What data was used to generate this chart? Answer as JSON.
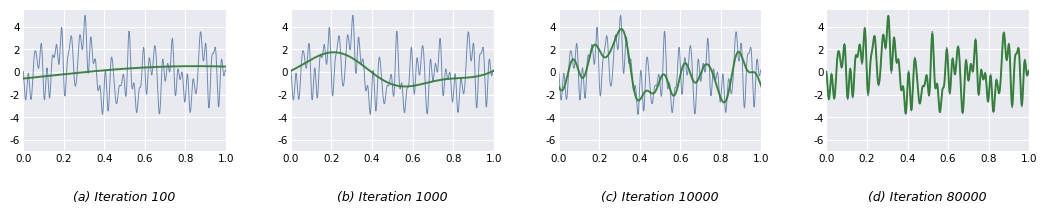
{
  "titles": [
    "(a) Iteration 100",
    "(b) Iteration 1000",
    "(c) Iteration 10000",
    "(d) Iteration 80000"
  ],
  "ylim": [
    -7,
    5.5
  ],
  "xlim": [
    0.0,
    1.0
  ],
  "yticks": [
    -6,
    -4,
    -2,
    0,
    2,
    4
  ],
  "xticks": [
    0.0,
    0.2,
    0.4,
    0.6,
    0.8,
    1.0
  ],
  "blue_color": "#5878a8",
  "green_color": "#2e7d32",
  "bg_color": "#e8eaf0",
  "fig_bg": "#ffffff",
  "seed": 7,
  "n_points": 1000,
  "title_fontsize": 9,
  "tick_fontsize": 7.5,
  "green_lw": 1.4,
  "blue_lw": 0.7,
  "blue_alpha": 0.85,
  "green_alpha": 0.92
}
